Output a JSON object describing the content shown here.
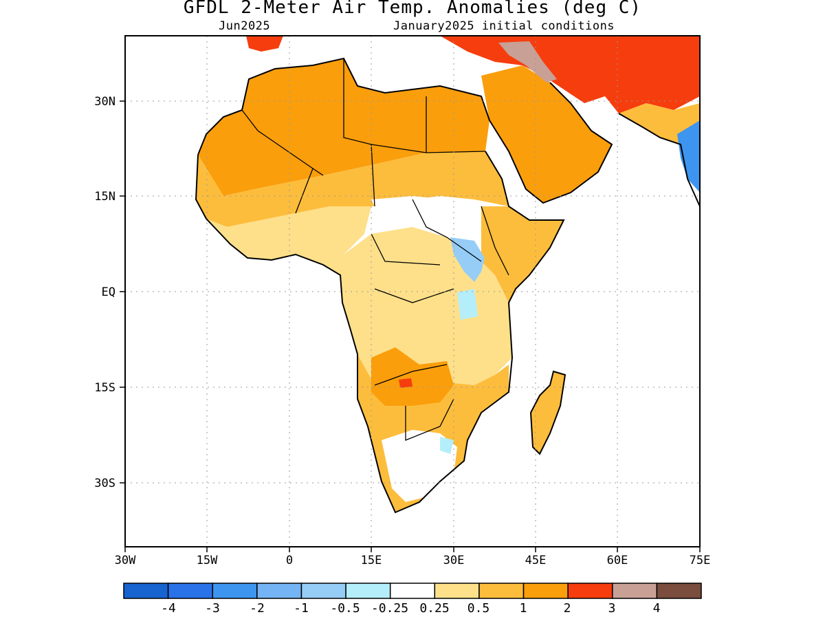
{
  "title": "GFDL 2-Meter Air Temp. Anomalies (deg C)",
  "subtitle_left": "Jun2025",
  "subtitle_right": "January2025 initial conditions",
  "x_ticks": [
    "30W",
    "15W",
    "0",
    "15E",
    "30E",
    "45E",
    "60E",
    "75E"
  ],
  "y_ticks": [
    "30N",
    "15N",
    "EQ",
    "15S",
    "30S"
  ],
  "colorbar": {
    "colors": [
      "#1764d0",
      "#2a72e8",
      "#3d95ef",
      "#74b4f4",
      "#96cdf7",
      "#b4eefa",
      "#ffffff",
      "#fee08a",
      "#fdbd3c",
      "#fa9e0c",
      "#f63d0e",
      "#c9a095",
      "#7a4d3f"
    ],
    "labels": [
      "-4",
      "-3",
      "-2",
      "-1",
      "-0.5",
      "-0.25",
      "0.25",
      "0.5",
      "1",
      "2",
      "3",
      "4"
    ]
  },
  "regions": [
    {
      "name": "north-africa-sahara",
      "color": "#fa9e0c"
    },
    {
      "name": "sahel",
      "color": "#fdbd3c"
    },
    {
      "name": "west-africa-coast",
      "color": "#fee08a"
    },
    {
      "name": "central-africa",
      "color": "#fee08a"
    },
    {
      "name": "east-africa-highlands",
      "color": "#96cdf7"
    },
    {
      "name": "southern-africa",
      "color": "#fdbd3c"
    },
    {
      "name": "madagascar",
      "color": "#fdbd3c"
    },
    {
      "name": "arabian-peninsula",
      "color": "#fa9e0c"
    },
    {
      "name": "iran-region",
      "color": "#f63d0e"
    },
    {
      "name": "turkey-region",
      "color": "#c9a095"
    },
    {
      "name": "india-west",
      "color": "#3d95ef"
    }
  ]
}
